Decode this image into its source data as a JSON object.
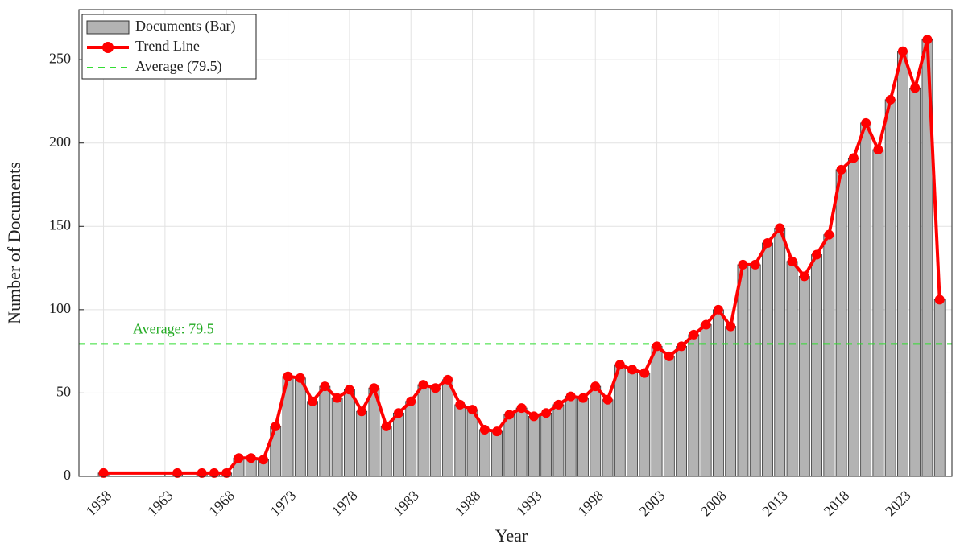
{
  "chart_data": {
    "type": "bar-line",
    "x_label": "Year",
    "y_label": "Number of Documents",
    "x": [
      1958,
      1964,
      1966,
      1967,
      1968,
      1969,
      1970,
      1971,
      1972,
      1973,
      1974,
      1975,
      1976,
      1977,
      1978,
      1979,
      1980,
      1981,
      1982,
      1983,
      1984,
      1985,
      1986,
      1987,
      1988,
      1989,
      1990,
      1991,
      1992,
      1993,
      1994,
      1995,
      1996,
      1997,
      1998,
      1999,
      2000,
      2001,
      2002,
      2003,
      2004,
      2005,
      2006,
      2007,
      2008,
      2009,
      2010,
      2011,
      2012,
      2013,
      2014,
      2015,
      2016,
      2017,
      2018,
      2019,
      2020,
      2021,
      2022,
      2023,
      2024,
      2025,
      2026
    ],
    "series": [
      {
        "name": "Documents (Bar)",
        "type": "bar",
        "color": "#b3b3b3",
        "values": [
          2,
          2,
          2,
          2,
          2,
          11,
          11,
          10,
          30,
          60,
          59,
          45,
          54,
          47,
          52,
          39,
          53,
          30,
          38,
          45,
          55,
          53,
          58,
          43,
          40,
          28,
          27,
          37,
          41,
          36,
          38,
          43,
          48,
          47,
          54,
          46,
          67,
          64,
          62,
          78,
          72,
          78,
          85,
          91,
          100,
          90,
          127,
          127,
          140,
          149,
          129,
          120,
          133,
          145,
          184,
          191,
          212,
          196,
          226,
          255,
          233,
          262,
          106
        ]
      },
      {
        "name": "Trend Line",
        "type": "line",
        "color": "#ff0000",
        "values": [
          2,
          2,
          2,
          2,
          2,
          11,
          11,
          10,
          30,
          60,
          59,
          45,
          54,
          47,
          52,
          39,
          53,
          30,
          38,
          45,
          55,
          53,
          58,
          43,
          40,
          28,
          27,
          37,
          41,
          36,
          38,
          43,
          48,
          47,
          54,
          46,
          67,
          64,
          62,
          78,
          72,
          78,
          85,
          91,
          100,
          90,
          127,
          127,
          140,
          149,
          129,
          120,
          133,
          145,
          184,
          191,
          212,
          196,
          226,
          255,
          233,
          262,
          106
        ]
      }
    ],
    "average": {
      "name": "Average (79.5)",
      "annotation": "Average: 79.5",
      "value": 79.5,
      "color": "#33dd33",
      "text_color": "#22aa22"
    },
    "xlim": [
      1956,
      2027
    ],
    "ylim": [
      0,
      280
    ],
    "xticks": [
      1958,
      1963,
      1968,
      1973,
      1978,
      1983,
      1988,
      1993,
      1998,
      2003,
      2008,
      2013,
      2018,
      2023
    ],
    "yticks": [
      0,
      50,
      100,
      150,
      200,
      250
    ],
    "grid": true,
    "legend": "upper-left"
  }
}
